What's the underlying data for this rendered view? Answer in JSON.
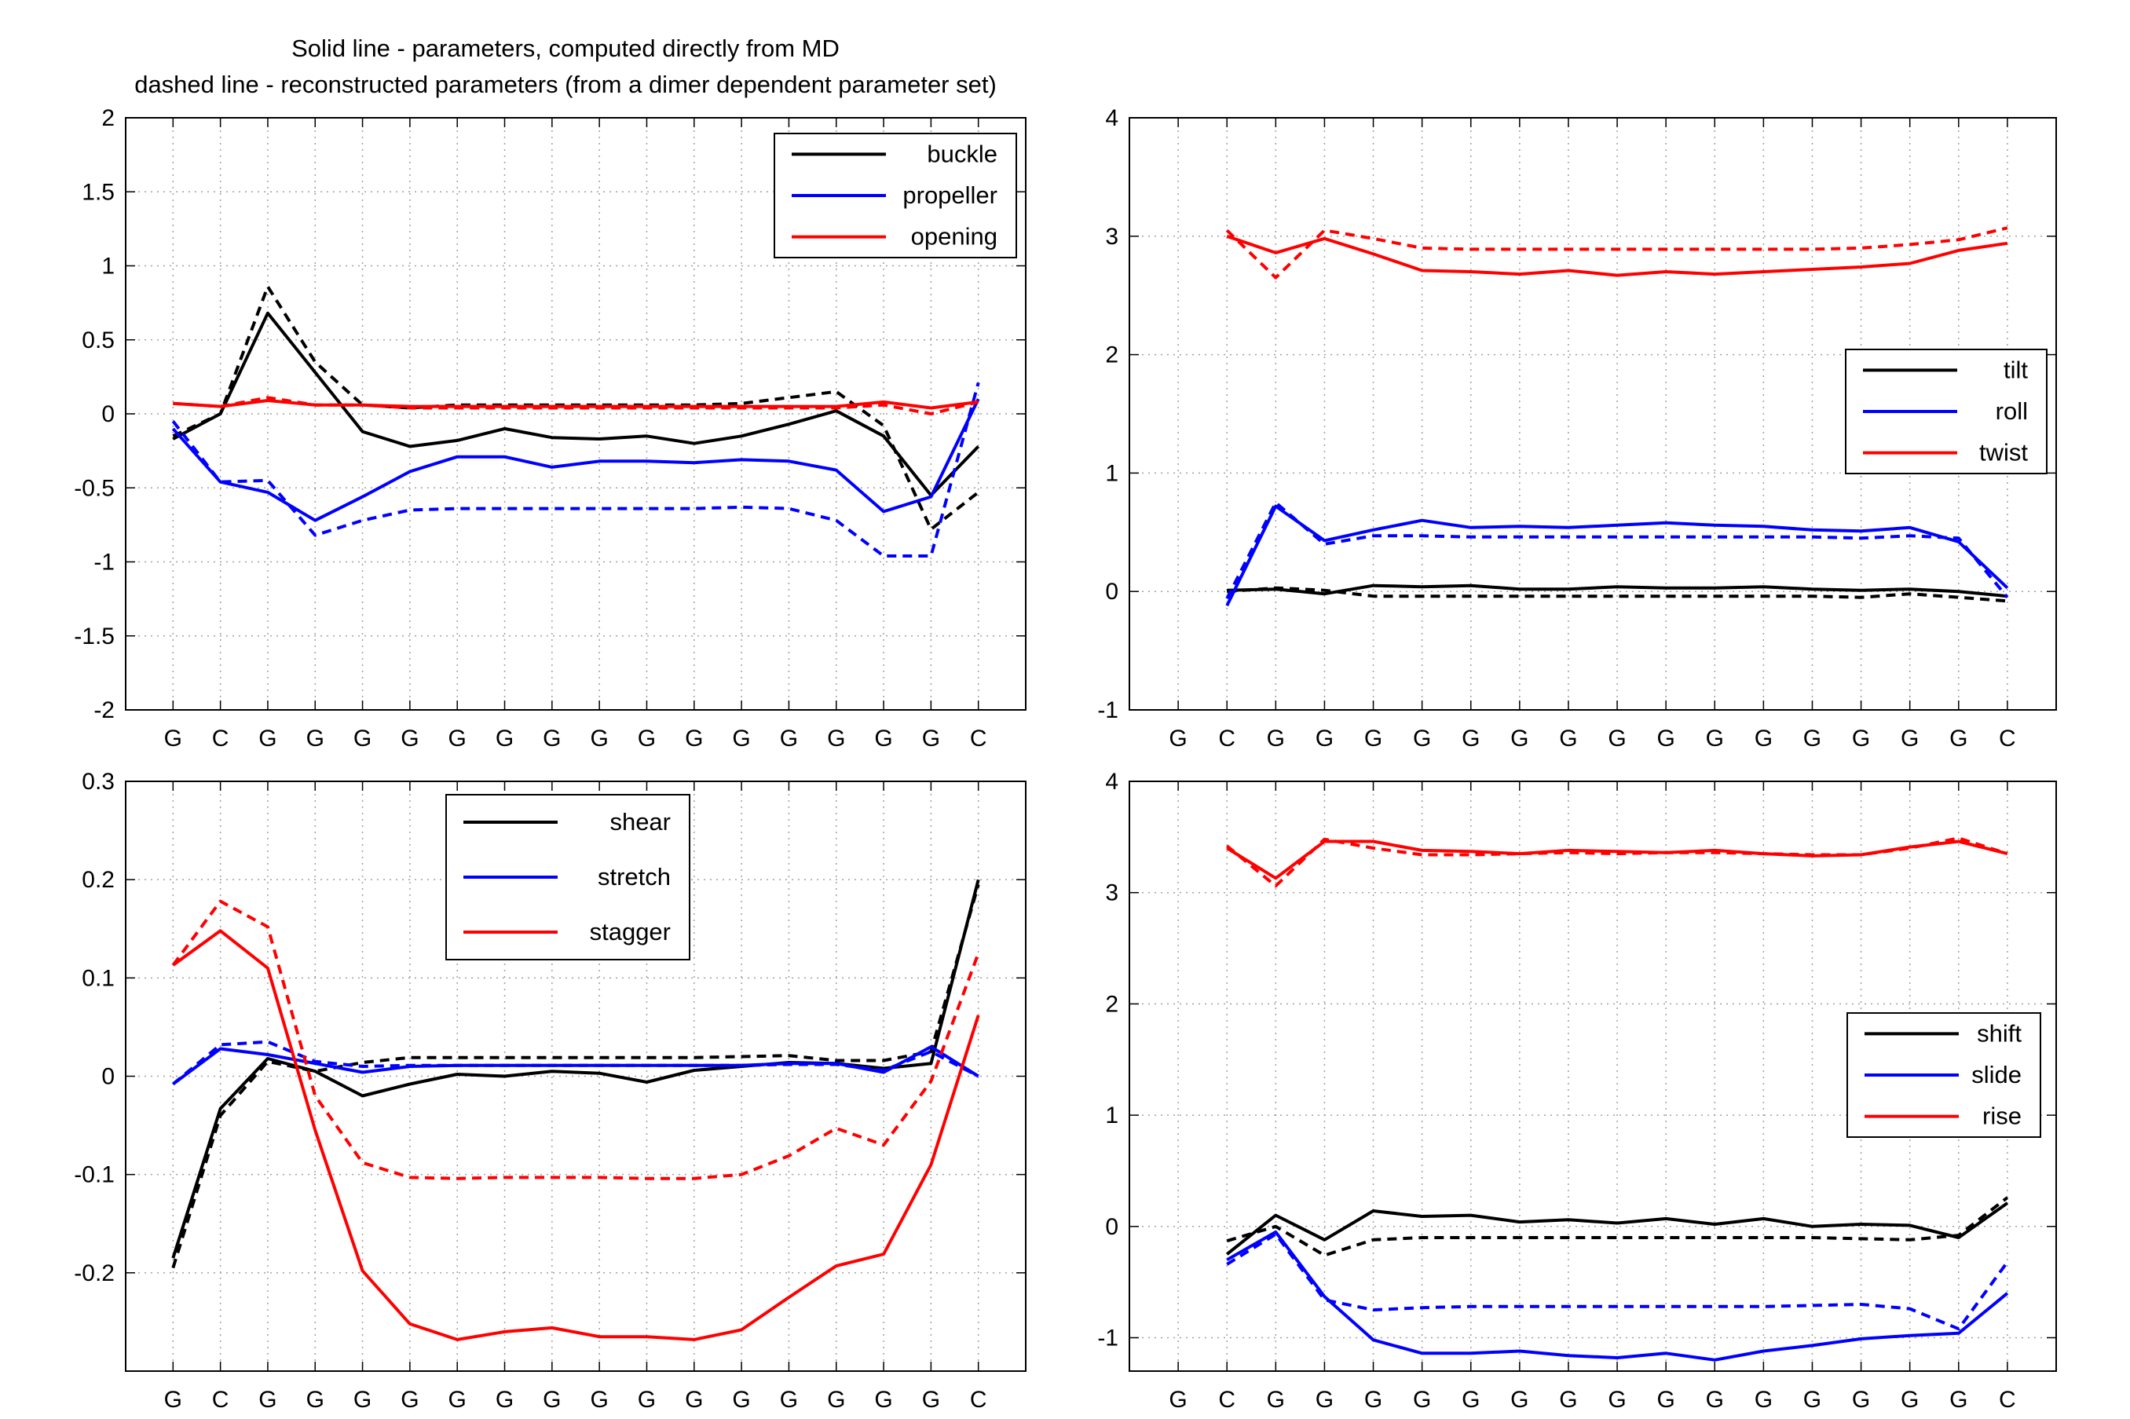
{
  "title_lines": [
    "Solid line - parameters, computed directly from MD",
    "dashed line - reconstructed parameters (from a dimer dependent parameter set)"
  ],
  "colors": {
    "black": "#000000",
    "blue": "#0000ff",
    "red": "#ff0000",
    "grid": "#a0a0a0"
  },
  "chart_data": [
    {
      "type": "line",
      "categories": [
        "G",
        "C",
        "G",
        "G",
        "G",
        "G",
        "G",
        "G",
        "G",
        "G",
        "G",
        "G",
        "G",
        "G",
        "G",
        "G",
        "G",
        "C"
      ],
      "ylim": [
        -2,
        2
      ],
      "yticks": [
        "2",
        "1.5",
        "1",
        "0.5",
        "0",
        "-0.5",
        "-1",
        "-1.5",
        "-2"
      ],
      "ytick_values": [
        2,
        1.5,
        1,
        0.5,
        0,
        -0.5,
        -1,
        -1.5,
        -2
      ],
      "legend_position": "top-right",
      "series": [
        {
          "name": "buckle",
          "color": "#000000",
          "solid": [
            -0.17,
            0.0,
            0.68,
            0.28,
            -0.12,
            -0.22,
            -0.18,
            -0.1,
            -0.16,
            -0.17,
            -0.15,
            -0.2,
            -0.15,
            -0.07,
            0.02,
            -0.15,
            -0.55,
            -0.22
          ],
          "dashed": [
            -0.15,
            0.0,
            0.86,
            0.35,
            0.06,
            0.04,
            0.06,
            0.06,
            0.06,
            0.06,
            0.06,
            0.06,
            0.07,
            0.11,
            0.15,
            -0.08,
            -0.78,
            -0.53
          ]
        },
        {
          "name": "propeller",
          "color": "#0000ff",
          "solid": [
            -0.1,
            -0.46,
            -0.53,
            -0.72,
            -0.56,
            -0.39,
            -0.29,
            -0.29,
            -0.36,
            -0.32,
            -0.32,
            -0.33,
            -0.31,
            -0.32,
            -0.38,
            -0.66,
            -0.56,
            0.1
          ],
          "dashed": [
            -0.05,
            -0.46,
            -0.45,
            -0.82,
            -0.72,
            -0.65,
            -0.64,
            -0.64,
            -0.64,
            -0.64,
            -0.64,
            -0.64,
            -0.63,
            -0.64,
            -0.72,
            -0.96,
            -0.96,
            0.21
          ]
        },
        {
          "name": "opening",
          "color": "#ff0000",
          "solid": [
            0.07,
            0.05,
            0.09,
            0.06,
            0.06,
            0.05,
            0.05,
            0.05,
            0.05,
            0.05,
            0.05,
            0.05,
            0.05,
            0.05,
            0.05,
            0.08,
            0.04,
            0.08
          ],
          "dashed": [
            0.07,
            0.05,
            0.11,
            0.06,
            0.06,
            0.04,
            0.04,
            0.04,
            0.04,
            0.04,
            0.04,
            0.04,
            0.04,
            0.04,
            0.04,
            0.06,
            0.0,
            0.08
          ]
        }
      ]
    },
    {
      "type": "line",
      "categories": [
        "G",
        "C",
        "G",
        "G",
        "G",
        "G",
        "G",
        "G",
        "G",
        "G",
        "G",
        "G",
        "G",
        "G",
        "G",
        "G",
        "G",
        "C"
      ],
      "ylim": [
        -1,
        4
      ],
      "yticks": [
        "4",
        "3",
        "2",
        "1",
        "0",
        "-1"
      ],
      "ytick_values": [
        4,
        3,
        2,
        1,
        0,
        -1
      ],
      "legend_position": "middle-right",
      "series": [
        {
          "name": "tilt",
          "color": "#000000",
          "solid": [
            0.01,
            0.02,
            -0.02,
            0.05,
            0.04,
            0.05,
            0.02,
            0.02,
            0.04,
            0.03,
            0.03,
            0.04,
            0.02,
            0.01,
            0.02,
            0.0,
            -0.04
          ],
          "dashed": [
            0.0,
            0.03,
            0.01,
            -0.04,
            -0.04,
            -0.04,
            -0.04,
            -0.04,
            -0.04,
            -0.04,
            -0.04,
            -0.04,
            -0.04,
            -0.05,
            -0.02,
            -0.05,
            -0.08
          ]
        },
        {
          "name": "roll",
          "color": "#0000ff",
          "solid": [
            -0.12,
            0.72,
            0.43,
            0.52,
            0.6,
            0.54,
            0.55,
            0.54,
            0.56,
            0.58,
            0.56,
            0.55,
            0.52,
            0.51,
            0.54,
            0.42,
            0.03
          ],
          "dashed": [
            -0.06,
            0.75,
            0.4,
            0.47,
            0.47,
            0.46,
            0.46,
            0.46,
            0.46,
            0.46,
            0.46,
            0.46,
            0.46,
            0.45,
            0.47,
            0.45,
            -0.05
          ]
        },
        {
          "name": "twist",
          "color": "#ff0000",
          "solid": [
            3.0,
            2.86,
            2.98,
            2.85,
            2.71,
            2.7,
            2.68,
            2.71,
            2.67,
            2.7,
            2.68,
            2.7,
            2.72,
            2.74,
            2.77,
            2.88,
            2.94
          ],
          "dashed": [
            3.05,
            2.65,
            3.05,
            2.98,
            2.9,
            2.89,
            2.89,
            2.89,
            2.89,
            2.89,
            2.89,
            2.89,
            2.89,
            2.9,
            2.93,
            2.97,
            3.07
          ]
        }
      ]
    },
    {
      "type": "line",
      "categories": [
        "G",
        "C",
        "G",
        "G",
        "G",
        "G",
        "G",
        "G",
        "G",
        "G",
        "G",
        "G",
        "G",
        "G",
        "G",
        "G",
        "G",
        "C"
      ],
      "ylim": [
        -0.3,
        0.3
      ],
      "yticks": [
        "0.3",
        "0.2",
        "0.1",
        "0",
        "-0.1",
        "-0.2"
      ],
      "ytick_values": [
        0.3,
        0.2,
        0.1,
        0,
        -0.1,
        -0.2
      ],
      "legend_position": "top-center",
      "series": [
        {
          "name": "shear",
          "color": "#000000",
          "solid": [
            -0.185,
            -0.033,
            0.018,
            0.005,
            -0.02,
            -0.008,
            0.002,
            0.0,
            0.005,
            0.003,
            -0.006,
            0.006,
            0.01,
            0.014,
            0.013,
            0.008,
            0.013,
            0.2
          ],
          "dashed": [
            -0.195,
            -0.04,
            0.015,
            0.005,
            0.014,
            0.019,
            0.019,
            0.019,
            0.019,
            0.019,
            0.019,
            0.019,
            0.02,
            0.021,
            0.016,
            0.016,
            0.025,
            0.195
          ]
        },
        {
          "name": "stretch",
          "color": "#0000ff",
          "solid": [
            -0.008,
            0.028,
            0.022,
            0.013,
            0.004,
            0.01,
            0.011,
            0.011,
            0.011,
            0.011,
            0.011,
            0.011,
            0.011,
            0.013,
            0.013,
            0.004,
            0.03,
            0.0
          ],
          "dashed": [
            -0.008,
            0.032,
            0.035,
            0.015,
            0.01,
            0.011,
            0.011,
            0.011,
            0.011,
            0.011,
            0.011,
            0.011,
            0.011,
            0.012,
            0.012,
            0.006,
            0.025,
            0.0
          ]
        },
        {
          "name": "stagger",
          "color": "#ff0000",
          "solid": [
            0.113,
            0.148,
            0.11,
            -0.055,
            -0.198,
            -0.252,
            -0.268,
            -0.26,
            -0.256,
            -0.265,
            -0.265,
            -0.268,
            -0.258,
            -0.225,
            -0.193,
            -0.181,
            -0.09,
            0.062
          ],
          "dashed": [
            0.113,
            0.178,
            0.152,
            -0.02,
            -0.088,
            -0.103,
            -0.104,
            -0.103,
            -0.103,
            -0.103,
            -0.104,
            -0.104,
            -0.1,
            -0.081,
            -0.053,
            -0.07,
            -0.005,
            0.125
          ]
        }
      ]
    },
    {
      "type": "line",
      "categories": [
        "G",
        "C",
        "G",
        "G",
        "G",
        "G",
        "G",
        "G",
        "G",
        "G",
        "G",
        "G",
        "G",
        "G",
        "G",
        "G",
        "G",
        "C"
      ],
      "ylim": [
        -1.3,
        4
      ],
      "yticks": [
        "4",
        "3",
        "2",
        "1",
        "0",
        "-1"
      ],
      "ytick_values": [
        4,
        3,
        2,
        1,
        0,
        -1
      ],
      "legend_position": "right",
      "series": [
        {
          "name": "shift",
          "color": "#000000",
          "solid": [
            -0.25,
            0.1,
            -0.12,
            0.14,
            0.09,
            0.1,
            0.04,
            0.06,
            0.03,
            0.07,
            0.02,
            0.07,
            0.0,
            0.02,
            0.01,
            -0.1,
            0.21
          ],
          "dashed": [
            -0.13,
            0.0,
            -0.26,
            -0.12,
            -0.1,
            -0.1,
            -0.1,
            -0.1,
            -0.1,
            -0.1,
            -0.1,
            -0.1,
            -0.1,
            -0.11,
            -0.12,
            -0.08,
            0.26
          ]
        },
        {
          "name": "slide",
          "color": "#0000ff",
          "solid": [
            -0.3,
            -0.05,
            -0.63,
            -1.02,
            -1.14,
            -1.14,
            -1.12,
            -1.16,
            -1.18,
            -1.14,
            -1.2,
            -1.12,
            -1.07,
            -1.01,
            -0.98,
            -0.96,
            -0.6
          ],
          "dashed": [
            -0.34,
            -0.07,
            -0.66,
            -0.75,
            -0.73,
            -0.72,
            -0.72,
            -0.72,
            -0.72,
            -0.72,
            -0.72,
            -0.72,
            -0.71,
            -0.7,
            -0.74,
            -0.92,
            -0.32
          ]
        },
        {
          "name": "rise",
          "color": "#ff0000",
          "solid": [
            3.4,
            3.13,
            3.46,
            3.46,
            3.38,
            3.37,
            3.35,
            3.38,
            3.37,
            3.36,
            3.38,
            3.35,
            3.33,
            3.34,
            3.41,
            3.46,
            3.35
          ],
          "dashed": [
            3.42,
            3.06,
            3.48,
            3.4,
            3.34,
            3.34,
            3.35,
            3.36,
            3.35,
            3.36,
            3.36,
            3.35,
            3.34,
            3.34,
            3.4,
            3.49,
            3.35
          ]
        }
      ]
    }
  ]
}
